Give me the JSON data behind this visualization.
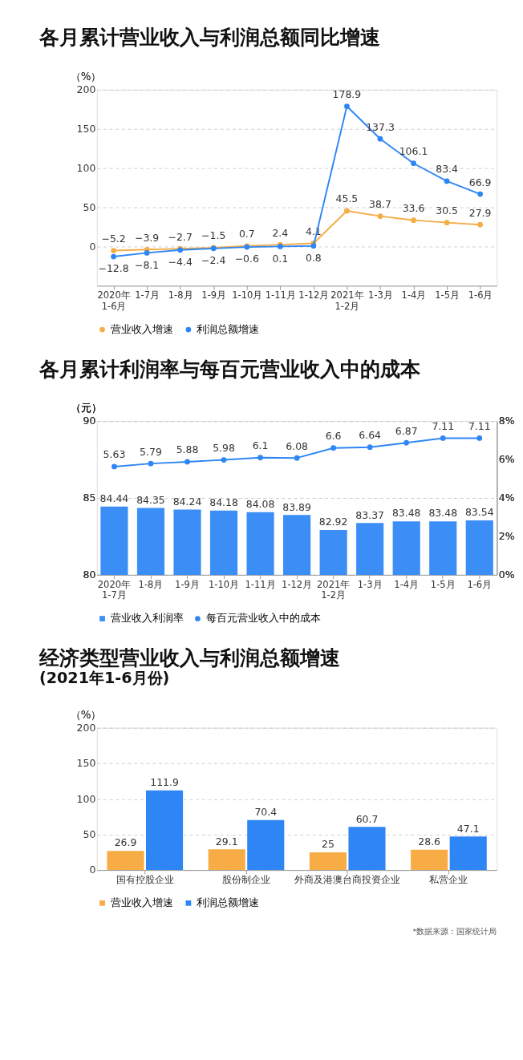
{
  "chart_data": [
    {
      "type": "line",
      "title": "各月累计营业收入与利润总额同比增速",
      "ylabel": "（%）",
      "categories": [
        "2020年\n1-6月",
        "1-7月",
        "1-8月",
        "1-9月",
        "1-10月",
        "1-11月",
        "1-12月",
        "2021年\n1-2月",
        "1-3月",
        "1-4月",
        "1-5月",
        "1-6月"
      ],
      "series": [
        {
          "name": "营业收入增速",
          "color": "#f5ad47",
          "values": [
            -5.2,
            -3.9,
            -2.7,
            -1.5,
            0.7,
            2.4,
            4.1,
            45.5,
            38.7,
            33.6,
            30.5,
            27.9
          ]
        },
        {
          "name": "利润总额增速",
          "color": "#2e86f5",
          "values": [
            -12.8,
            -8.1,
            -4.4,
            -2.4,
            -0.6,
            0.1,
            0.8,
            178.9,
            137.3,
            106.1,
            83.4,
            66.9
          ]
        }
      ],
      "ylim": [
        -50,
        200
      ],
      "yticks": [
        0,
        50,
        100,
        150,
        200
      ],
      "grid": "y",
      "legend": "bottom",
      "marker": "circle",
      "data_labels": true
    },
    {
      "type": "bar",
      "title": "各月累计利润率与每百元营业收入中的成本",
      "ylabel": "（元）",
      "categories": [
        "2020年\n1-7月",
        "1-8月",
        "1-9月",
        "1-10月",
        "1-11月",
        "1-12月",
        "2021年\n1-2月",
        "1-3月",
        "1-4月",
        "1-5月",
        "1-6月"
      ],
      "series": [
        {
          "name": "每百元营业收入中的成本",
          "type": "line",
          "axis": "y2",
          "color": "#2e86f5",
          "values": [
            5.63,
            5.79,
            5.88,
            5.98,
            6.1,
            6.08,
            6.6,
            6.64,
            6.87,
            7.11,
            7.11
          ]
        },
        {
          "name": "营业收入利润率",
          "type": "bar",
          "color": "#3a8ef6",
          "values": [
            84.44,
            84.35,
            84.24,
            84.18,
            84.08,
            83.89,
            82.92,
            83.37,
            83.48,
            83.48,
            83.54
          ]
        }
      ],
      "ylim": [
        80,
        90
      ],
      "yticks": [
        80,
        85,
        90
      ],
      "y2lim": [
        0,
        8
      ],
      "y2ticks": [
        {
          "value": 0,
          "label": "0%"
        },
        {
          "value": 2,
          "label": "2%"
        },
        {
          "value": 4,
          "label": "4%"
        },
        {
          "value": 6,
          "label": "6%"
        },
        {
          "value": 8,
          "label": "8%"
        }
      ],
      "grid": "y",
      "legend": "bottom",
      "marker": "circle",
      "data_labels": true
    },
    {
      "type": "bar",
      "title": "经济类型营业收入与利润总额增速",
      "subtitle": "(2021年1-6月份)",
      "ylabel": "（%）",
      "categories": [
        "国有控股企业",
        "股份制企业",
        "外商及港澳台商投资企业",
        "私营企业"
      ],
      "series": [
        {
          "name": "营业收入增速",
          "color": "#f8ac45",
          "values": [
            26.9,
            29.1,
            25,
            28.6
          ]
        },
        {
          "name": "利润总额增速",
          "color": "#2e86f5",
          "values": [
            111.9,
            70.4,
            60.7,
            47.1
          ]
        }
      ],
      "ylim": [
        0,
        200
      ],
      "yticks": [
        0,
        50,
        100,
        150,
        200
      ],
      "grid": "y",
      "legend": "bottom",
      "data_labels": true,
      "annotations": [
        "*数据来源：国家统计局"
      ]
    }
  ]
}
